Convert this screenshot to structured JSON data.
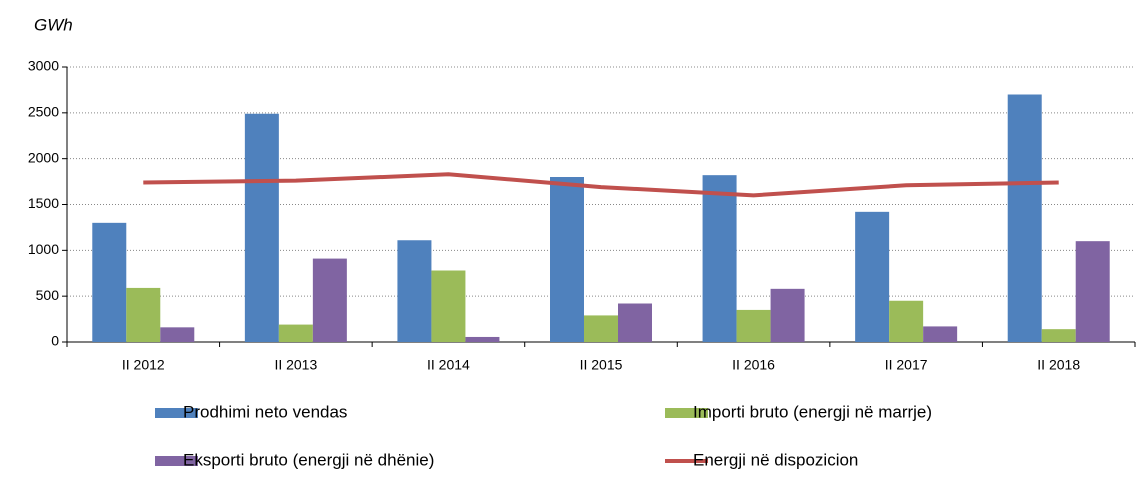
{
  "chart_data": {
    "type": "bar",
    "ylabel": "GWh",
    "categories": [
      "II 2012",
      "II 2013",
      "II 2014",
      "II 2015",
      "II 2016",
      "II 2017",
      "II 2018"
    ],
    "series": [
      {
        "name": "Prodhimi neto vendas",
        "color": "#4f81bd",
        "type": "bar",
        "values": [
          1300,
          2490,
          1110,
          1800,
          1820,
          1420,
          2700
        ]
      },
      {
        "name": "Importi bruto (energji në marrje)",
        "color": "#9bbb59",
        "type": "bar",
        "values": [
          590,
          190,
          780,
          290,
          350,
          450,
          140
        ]
      },
      {
        "name": "Eksporti bruto (energji në dhënie)",
        "color": "#8064a2",
        "type": "bar",
        "values": [
          160,
          910,
          55,
          420,
          580,
          170,
          1100
        ]
      },
      {
        "name": "Energji në dispozicion",
        "color": "#c0504d",
        "type": "line",
        "values": [
          1740,
          1760,
          1830,
          1690,
          1600,
          1710,
          1740
        ]
      }
    ],
    "ylim": [
      0,
      3000
    ],
    "yticks": [
      0,
      500,
      1000,
      1500,
      2000,
      2500,
      3000
    ],
    "grid": true,
    "legend": "bottom"
  }
}
